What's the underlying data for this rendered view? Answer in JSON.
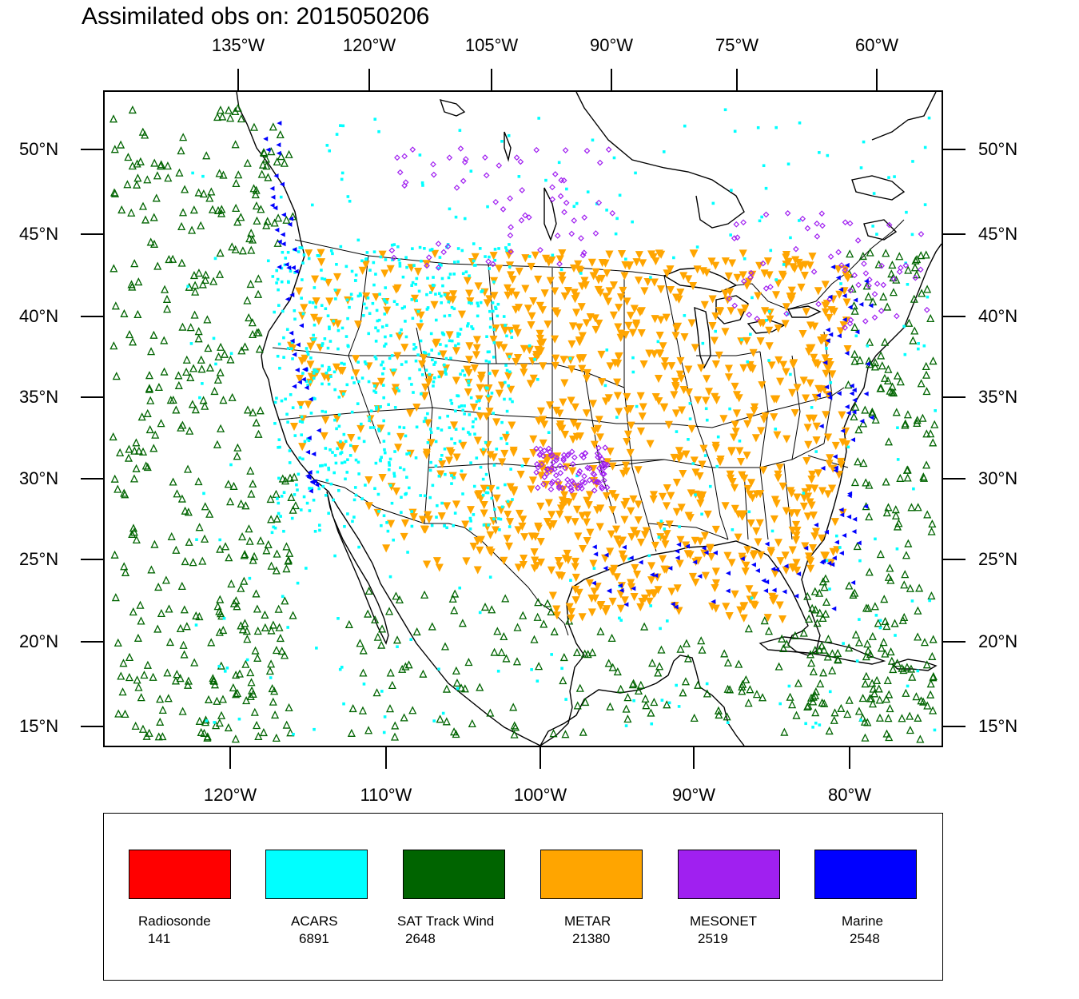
{
  "title": "Assimilated obs on: 2015050206",
  "top_lon_labels": [
    "135°W",
    "120°W",
    "105°W",
    "90°W",
    "75°W",
    "60°W"
  ],
  "bottom_lon_labels": [
    "120°W",
    "110°W",
    "100°W",
    "90°W",
    "80°W"
  ],
  "lat_labels": [
    "50°N",
    "45°N",
    "40°N",
    "35°N",
    "30°N",
    "25°N",
    "20°N",
    "15°N"
  ],
  "legend": [
    {
      "name": "Radiosonde",
      "count": "141",
      "color": "#ff0000"
    },
    {
      "name": "ACARS",
      "count": "6891",
      "color": "#00ffff"
    },
    {
      "name": "SAT Track Wind",
      "count": "2648",
      "color": "#006400"
    },
    {
      "name": "METAR",
      "count": "21380",
      "color": "#ffa500"
    },
    {
      "name": "MESONET",
      "count": "2519",
      "color": "#a020f0"
    },
    {
      "name": "Marine",
      "count": "2548",
      "color": "#0000ff"
    }
  ]
}
